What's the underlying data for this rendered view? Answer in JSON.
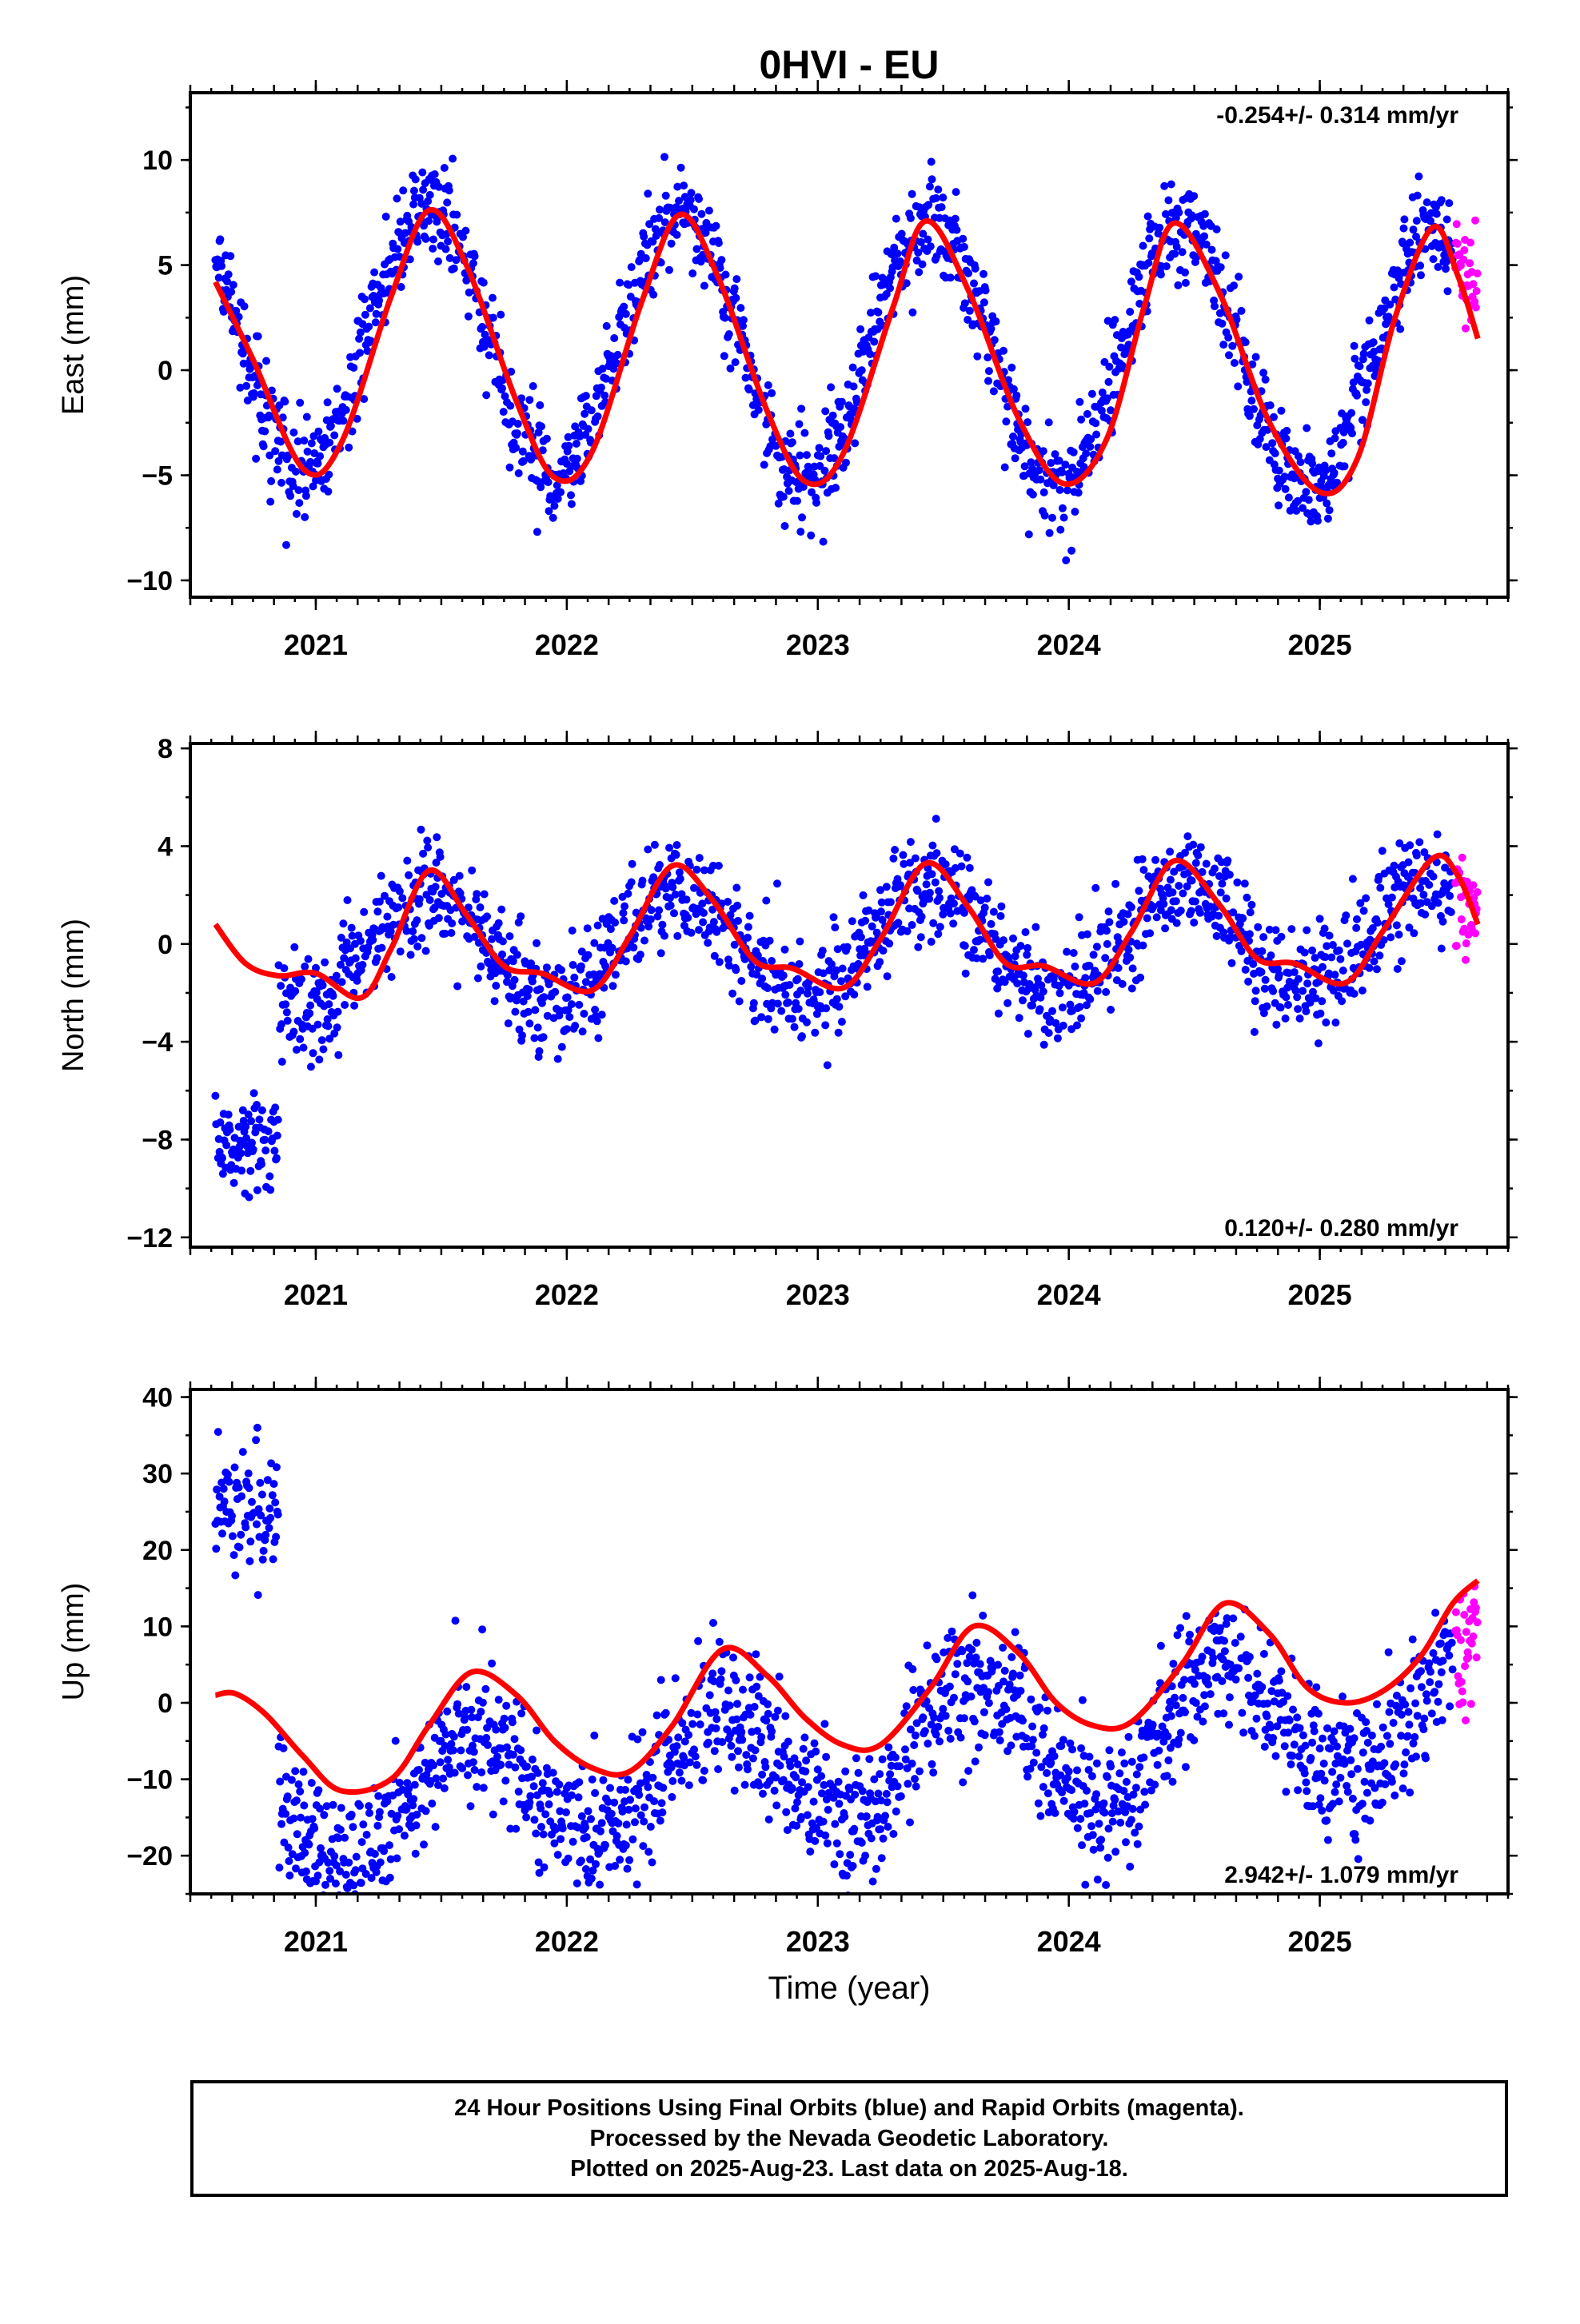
{
  "title": "0HVI - EU",
  "xlabel": "Time (year)",
  "footer": {
    "line1": "24 Hour Positions Using Final Orbits (blue) and Rapid Orbits (magenta).",
    "line2": "Processed by the Nevada Geodetic Laboratory.",
    "line3": "Plotted on 2025-Aug-23. Last data on 2025-Aug-18."
  },
  "colors": {
    "final": "#0000ff",
    "rapid": "#ff00ff",
    "fit": "#ff0000"
  },
  "chart_data": [
    {
      "type": "scatter",
      "ylabel": "East (mm)",
      "rate": "-0.254+/- 0.314 mm/yr",
      "xlim": [
        2020.5,
        2025.75
      ],
      "ylim": [
        -10.8,
        13.2
      ],
      "yticks": [
        10,
        5,
        0,
        -5,
        -10
      ],
      "xticks": [
        "2021",
        "2022",
        "2023",
        "2024",
        "2025"
      ],
      "series": [
        {
          "name": "Final Orbits",
          "color": "#0000ff",
          "model": {
            "type": "seasonal",
            "offset": 1.0,
            "trend": -0.25,
            "amp": 6.2,
            "peak": 0.45,
            "noise": 1.2
          },
          "x_range": [
            2020.6,
            2025.53
          ]
        },
        {
          "name": "Rapid Orbits",
          "color": "#ff00ff",
          "model": {
            "type": "seasonal",
            "offset": 1.0,
            "trend": -0.25,
            "amp": 6.2,
            "peak": 0.45,
            "noise": 1.2
          },
          "x_range": [
            2025.54,
            2025.63
          ]
        }
      ],
      "fit_points": [
        [
          2020.6,
          4.2
        ],
        [
          2020.75,
          0.5
        ],
        [
          2020.95,
          -4.7
        ],
        [
          2021.1,
          -3.5
        ],
        [
          2021.3,
          3.5
        ],
        [
          2021.45,
          7.6
        ],
        [
          2021.6,
          5.0
        ],
        [
          2021.8,
          -1.5
        ],
        [
          2021.95,
          -5.1
        ],
        [
          2022.1,
          -3.9
        ],
        [
          2022.3,
          3.3
        ],
        [
          2022.45,
          7.4
        ],
        [
          2022.6,
          4.5
        ],
        [
          2022.8,
          -2.0
        ],
        [
          2022.95,
          -5.3
        ],
        [
          2023.1,
          -4.0
        ],
        [
          2023.3,
          3.0
        ],
        [
          2023.43,
          7.1
        ],
        [
          2023.6,
          3.8
        ],
        [
          2023.8,
          -2.3
        ],
        [
          2023.98,
          -5.4
        ],
        [
          2024.15,
          -3.3
        ],
        [
          2024.3,
          3.0
        ],
        [
          2024.42,
          7.0
        ],
        [
          2024.6,
          3.7
        ],
        [
          2024.8,
          -2.5
        ],
        [
          2025.0,
          -5.8
        ],
        [
          2025.15,
          -4.2
        ],
        [
          2025.3,
          2.5
        ],
        [
          2025.45,
          6.8
        ],
        [
          2025.55,
          4.5
        ],
        [
          2025.63,
          1.5
        ]
      ]
    },
    {
      "type": "scatter",
      "ylabel": "North (mm)",
      "rate": "0.120+/- 0.280 mm/yr",
      "xlim": [
        2020.5,
        2025.75
      ],
      "ylim": [
        -12.4,
        8.2
      ],
      "yticks": [
        8,
        4,
        0,
        -4,
        -8,
        -12
      ],
      "xticks": [
        "2021",
        "2022",
        "2023",
        "2024",
        "2025"
      ],
      "series": [
        {
          "name": "Final Orbits",
          "color": "#0000ff",
          "model": {
            "type": "seasonal",
            "offset": 0.0,
            "trend": 0.12,
            "amp": 2.2,
            "peak": 0.45,
            "noise": 1.1,
            "early_offset": -8.0,
            "early_end": 2020.85
          },
          "x_range": [
            2020.6,
            2025.53
          ]
        },
        {
          "name": "Rapid Orbits",
          "color": "#ff00ff",
          "model": {
            "type": "seasonal",
            "offset": 0.0,
            "trend": 0.12,
            "amp": 2.2,
            "peak": 0.45,
            "noise": 1.1
          },
          "x_range": [
            2025.54,
            2025.63
          ]
        }
      ],
      "fit_points": [
        [
          2020.6,
          0.8
        ],
        [
          2020.72,
          -0.8
        ],
        [
          2020.85,
          -1.3
        ],
        [
          2021.0,
          -1.2
        ],
        [
          2021.18,
          -2.2
        ],
        [
          2021.3,
          -0.2
        ],
        [
          2021.45,
          3.0
        ],
        [
          2021.6,
          1.2
        ],
        [
          2021.75,
          -0.9
        ],
        [
          2021.9,
          -1.2
        ],
        [
          2022.1,
          -1.9
        ],
        [
          2022.25,
          0.3
        ],
        [
          2022.42,
          3.2
        ],
        [
          2022.58,
          1.8
        ],
        [
          2022.75,
          -0.7
        ],
        [
          2022.9,
          -1.0
        ],
        [
          2023.1,
          -1.8
        ],
        [
          2023.25,
          0.2
        ],
        [
          2023.43,
          3.3
        ],
        [
          2023.6,
          1.5
        ],
        [
          2023.75,
          -0.8
        ],
        [
          2023.9,
          -0.9
        ],
        [
          2024.1,
          -1.6
        ],
        [
          2024.25,
          0.5
        ],
        [
          2024.42,
          3.4
        ],
        [
          2024.6,
          1.6
        ],
        [
          2024.75,
          -0.6
        ],
        [
          2024.9,
          -0.8
        ],
        [
          2025.1,
          -1.6
        ],
        [
          2025.25,
          0.5
        ],
        [
          2025.45,
          3.5
        ],
        [
          2025.55,
          2.8
        ],
        [
          2025.63,
          0.8
        ]
      ]
    },
    {
      "type": "scatter",
      "ylabel": "Up (mm)",
      "rate": "2.942+/- 1.079 mm/yr",
      "xlim": [
        2020.5,
        2025.75
      ],
      "ylim": [
        -25,
        41
      ],
      "yticks": [
        40,
        30,
        20,
        10,
        0,
        -10,
        -20
      ],
      "xticks": [
        "2021",
        "2022",
        "2023",
        "2024",
        "2025"
      ],
      "series": [
        {
          "name": "Final Orbits",
          "color": "#0000ff",
          "model": {
            "type": "seasonal",
            "offset": -8.0,
            "trend": 2.9,
            "amp": 8.0,
            "peak": 0.62,
            "noise": 4.5,
            "early_offset": 26.0,
            "early_end": 2020.85
          },
          "x_range": [
            2020.6,
            2025.53
          ]
        },
        {
          "name": "Rapid Orbits",
          "color": "#ff00ff",
          "model": {
            "type": "seasonal",
            "offset": -8.0,
            "trend": 2.9,
            "amp": 8.0,
            "peak": 0.62,
            "noise": 4.5
          },
          "x_range": [
            2025.54,
            2025.63
          ]
        }
      ],
      "fit_points": [
        [
          2020.6,
          1.0
        ],
        [
          2020.68,
          1.2
        ],
        [
          2020.8,
          -1.5
        ],
        [
          2020.95,
          -7.0
        ],
        [
          2021.1,
          -11.5
        ],
        [
          2021.3,
          -10.0
        ],
        [
          2021.45,
          -3.0
        ],
        [
          2021.62,
          4.0
        ],
        [
          2021.8,
          1.0
        ],
        [
          2021.95,
          -5.0
        ],
        [
          2022.1,
          -8.5
        ],
        [
          2022.25,
          -9.0
        ],
        [
          2022.42,
          -3.0
        ],
        [
          2022.62,
          7.0
        ],
        [
          2022.8,
          3.5
        ],
        [
          2022.95,
          -2.0
        ],
        [
          2023.1,
          -5.5
        ],
        [
          2023.25,
          -5.5
        ],
        [
          2023.45,
          2.0
        ],
        [
          2023.62,
          10.0
        ],
        [
          2023.8,
          6.5
        ],
        [
          2023.95,
          0.0
        ],
        [
          2024.1,
          -3.0
        ],
        [
          2024.25,
          -2.5
        ],
        [
          2024.45,
          5.0
        ],
        [
          2024.62,
          13.0
        ],
        [
          2024.8,
          9.0
        ],
        [
          2024.95,
          2.0
        ],
        [
          2025.1,
          0.0
        ],
        [
          2025.25,
          1.5
        ],
        [
          2025.4,
          6.0
        ],
        [
          2025.53,
          13.0
        ],
        [
          2025.63,
          16.0
        ]
      ]
    }
  ]
}
